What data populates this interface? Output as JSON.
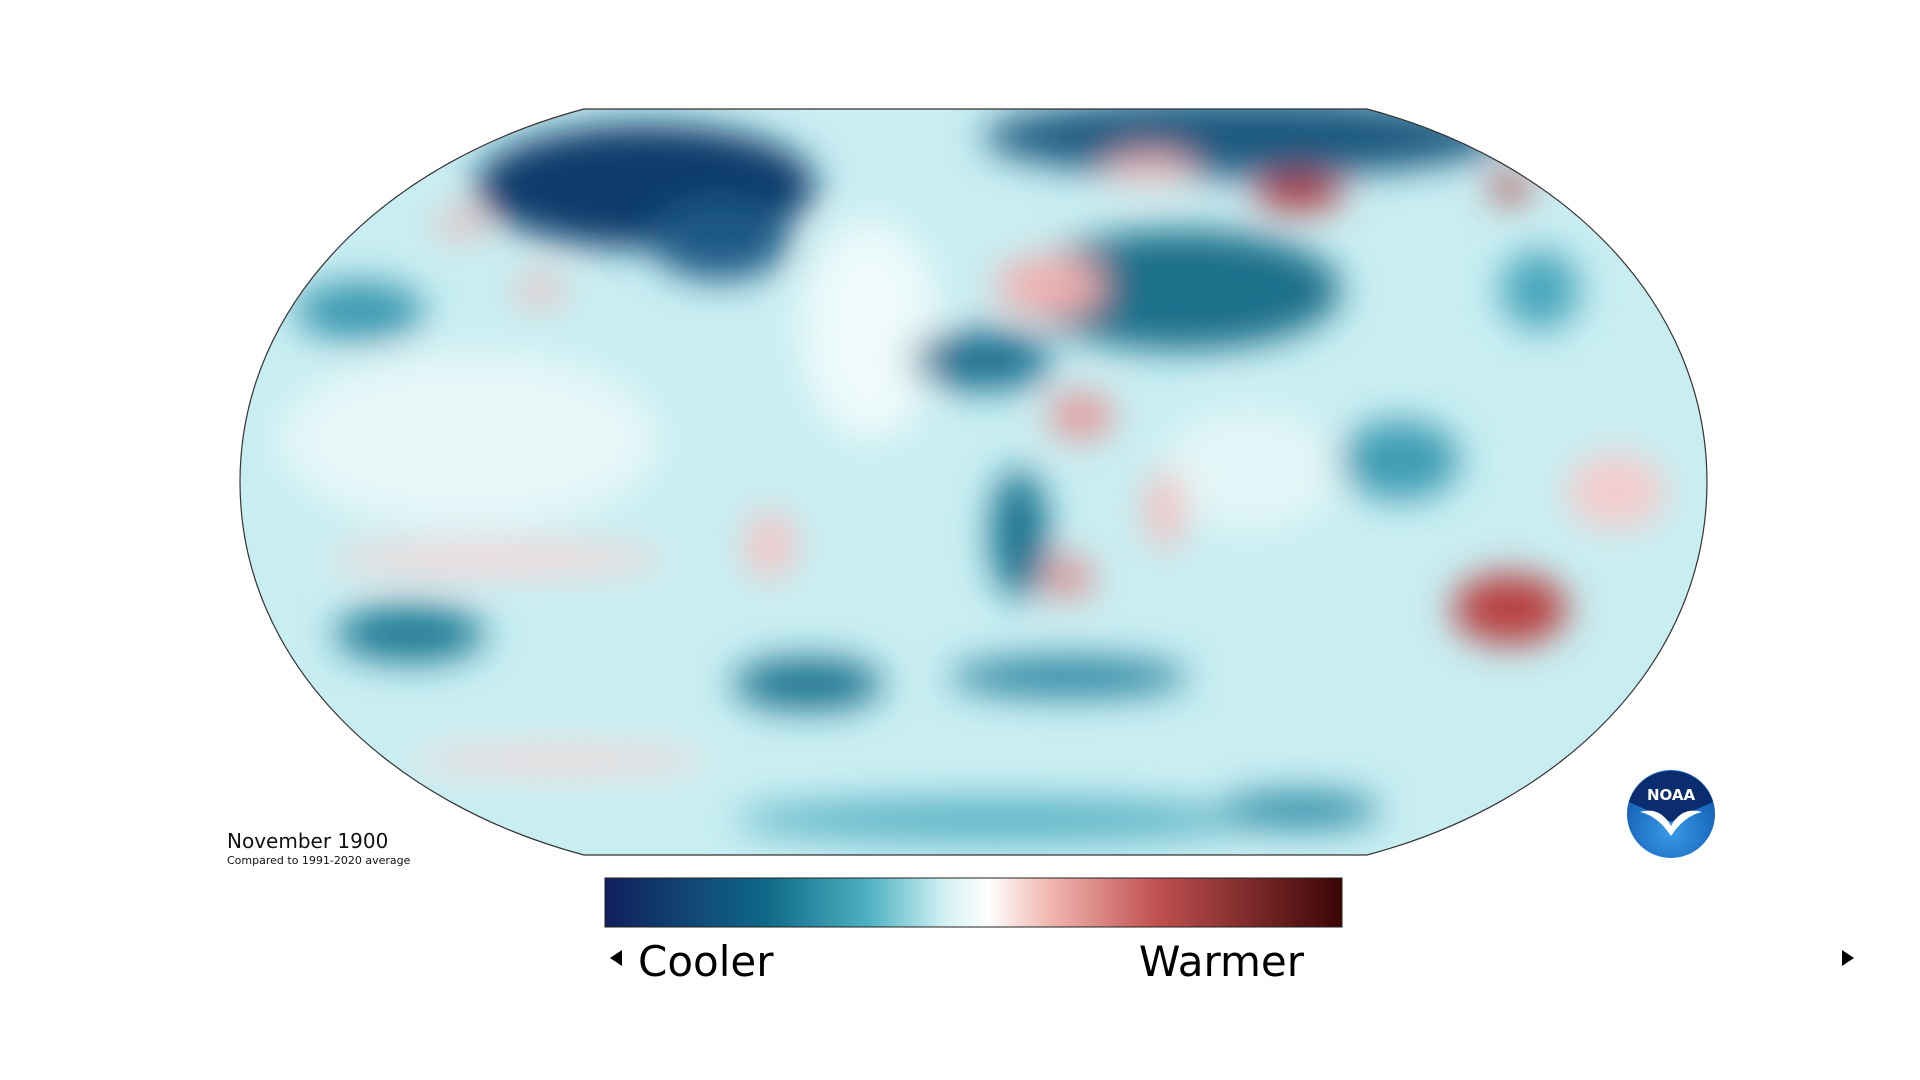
{
  "title": "November 1900",
  "subtitle": "Compared to 1991-2020 average",
  "legend": {
    "low": "Cooler",
    "high": "Warmer"
  },
  "logo": "NOAA"
}
